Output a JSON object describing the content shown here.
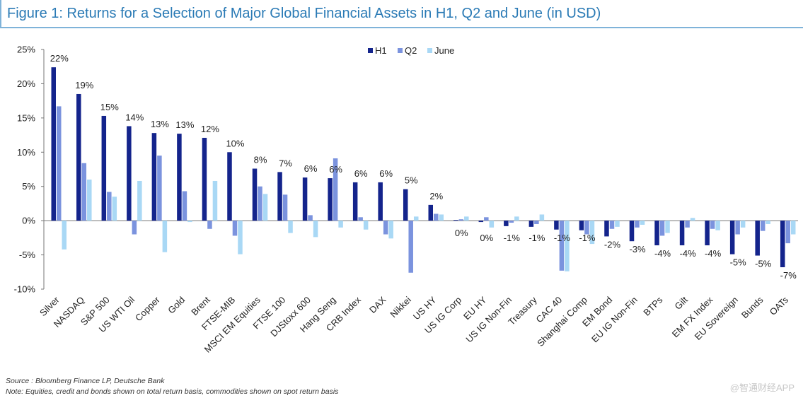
{
  "header": {
    "title": "Figure 1: Returns for a Selection of Major Global Financial Assets in H1, Q2 and June (in USD)"
  },
  "footer": {
    "source": "Source : Bloomberg Finance LP, Deutsche Bank",
    "note": "Note: Equities, credit and bonds shown on total return basis, commodities shown on spot return basis",
    "watermark": "@智通财经APP"
  },
  "chart_data": {
    "type": "bar",
    "title": "Figure 1: Returns for a Selection of Major Global Financial Assets in H1, Q2 and June (in USD)",
    "ylim": [
      -10,
      25
    ],
    "yticks": [
      -10,
      -5,
      0,
      5,
      10,
      15,
      20,
      25
    ],
    "ytick_labels": [
      "-10%",
      "-5%",
      "0%",
      "5%",
      "10%",
      "15%",
      "20%",
      "25%"
    ],
    "grid": false,
    "legend_position": "top-center",
    "colors": {
      "H1": "#14248c",
      "Q2": "#7b93de",
      "June": "#a9d8f5"
    },
    "categories": [
      "Silver",
      "NASDAQ",
      "S&P 500",
      "US WTI Oil",
      "Copper",
      "Gold",
      "Brent",
      "FTSE-MIB",
      "MSCI EM Equities",
      "FTSE 100",
      "DJStoxx 600",
      "Hang Seng",
      "CRB Index",
      "DAX",
      "Nikkei",
      "US HY",
      "US IG Corp",
      "EU HY",
      "US IG Non-Fin",
      "Treasury",
      "CAC 40",
      "Shanghai Comp",
      "EM Bond",
      "EU IG Non-Fin",
      "BTPs",
      "Gilt",
      "EM FX Index",
      "EU Sovereign",
      "Bunds",
      "OATs"
    ],
    "data_labels": [
      "22%",
      "19%",
      "15%",
      "14%",
      "13%",
      "13%",
      "12%",
      "10%",
      "8%",
      "7%",
      "6%",
      "6%",
      "6%",
      "6%",
      "5%",
      "2%",
      "0%",
      "0%",
      "-1%",
      "-1%",
      "-1%",
      "-1%",
      "-2%",
      "-3%",
      "-4%",
      "-4%",
      "-4%",
      "-5%",
      "-5%",
      "-7%"
    ],
    "series": [
      {
        "name": "H1",
        "values": [
          22.4,
          18.5,
          15.3,
          13.8,
          12.8,
          12.7,
          12.1,
          10.0,
          7.6,
          7.1,
          6.3,
          6.2,
          5.6,
          5.6,
          4.6,
          2.3,
          0.1,
          -0.2,
          -0.8,
          -0.9,
          -1.3,
          -1.4,
          -2.3,
          -3.0,
          -3.6,
          -3.6,
          -3.6,
          -4.9,
          -5.1,
          -6.8
        ]
      },
      {
        "name": "Q2",
        "values": [
          16.7,
          8.4,
          4.2,
          -2.0,
          9.5,
          4.3,
          -1.2,
          -2.2,
          5.0,
          3.8,
          0.8,
          9.1,
          0.5,
          -2.0,
          -7.6,
          1.0,
          0.2,
          0.5,
          -0.3,
          -0.5,
          -7.3,
          -2.0,
          -1.2,
          -1.0,
          -2.2,
          -1.0,
          -1.2,
          -2.0,
          -1.5,
          -3.3
        ]
      },
      {
        "name": "June",
        "values": [
          -4.2,
          6.0,
          3.5,
          5.8,
          -4.6,
          -0.2,
          5.8,
          -4.9,
          3.9,
          -1.8,
          -2.4,
          -1.0,
          -1.3,
          -2.6,
          0.6,
          0.9,
          0.6,
          -1.0,
          0.6,
          0.9,
          -7.4,
          -3.4,
          -0.9,
          -0.6,
          -1.8,
          0.4,
          -1.4,
          -1.0,
          -0.5,
          -2.0
        ]
      }
    ]
  }
}
